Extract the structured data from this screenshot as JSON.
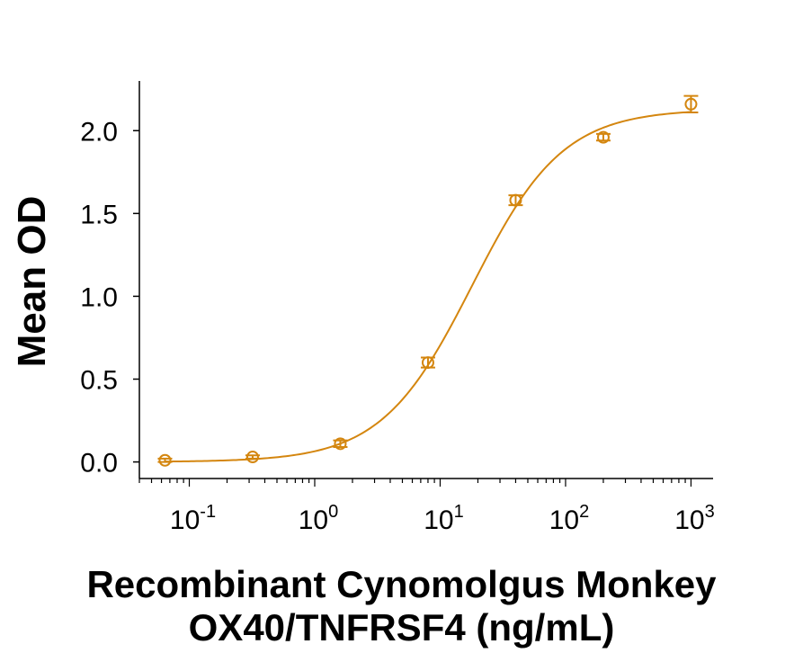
{
  "chart_data": {
    "type": "scatter",
    "title": "",
    "ylabel": "Mean OD",
    "xlabel_lines": [
      "Recombinant Cynomolgus Monkey",
      "OX40/TNFRSF4 (ng/mL)"
    ],
    "xscale": "log",
    "xlim": [
      0.04,
      1500
    ],
    "ylim": [
      -0.1,
      2.3
    ],
    "yticks": [
      0.0,
      0.5,
      1.0,
      1.5,
      2.0
    ],
    "ytick_labels": [
      "0.0",
      "0.5",
      "1.0",
      "1.5",
      "2.0"
    ],
    "xticks": [
      0.1,
      1,
      10,
      100,
      1000
    ],
    "xtick_labels": [
      {
        "base": "10",
        "exp": "-1"
      },
      {
        "base": "10",
        "exp": "0"
      },
      {
        "base": "10",
        "exp": "1"
      },
      {
        "base": "10",
        "exp": "2"
      },
      {
        "base": "10",
        "exp": "3"
      }
    ],
    "grid": false,
    "legend": "none",
    "color": "#D4860F",
    "series": [
      {
        "x": [
          0.064,
          0.32,
          1.6,
          8,
          40,
          200,
          1000
        ],
        "y": [
          0.01,
          0.03,
          0.11,
          0.6,
          1.58,
          1.96,
          2.16
        ],
        "error": [
          0.01,
          0.01,
          0.02,
          0.03,
          0.03,
          0.02,
          0.05
        ]
      }
    ],
    "fit_curve": {
      "model": "4PL",
      "bottom": 0.0,
      "top": 2.13,
      "ec50": 18,
      "hill": 1.2
    }
  }
}
